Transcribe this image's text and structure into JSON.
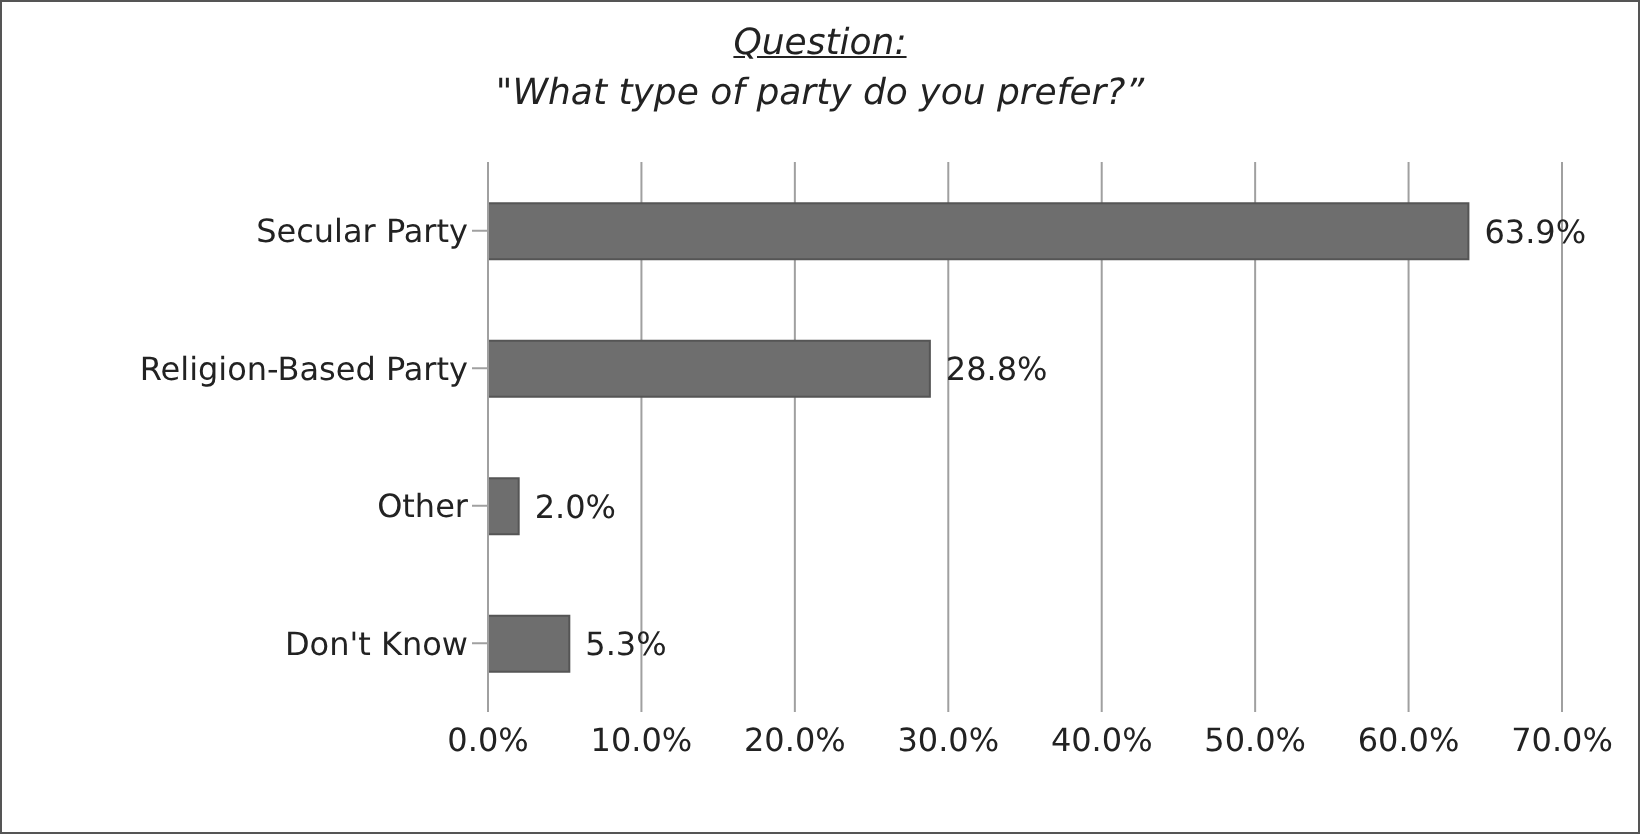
{
  "chart_data": {
    "type": "bar",
    "orientation": "horizontal",
    "title": "Question:",
    "subtitle": "\"What type of party do you prefer?”",
    "categories": [
      "Secular Party",
      "Religion-Based Party",
      "Other",
      "Don't Know"
    ],
    "values": [
      63.9,
      28.8,
      2.0,
      5.3
    ],
    "color": "#6e6e6e",
    "value_labels": [
      "63.9%",
      "28.8%",
      "2.0%",
      "5.3%"
    ],
    "xlim": [
      0,
      70
    ],
    "xticks": [
      {
        "value": 0,
        "label": "0.0%"
      },
      {
        "value": 10,
        "label": "10.0%"
      },
      {
        "value": 20,
        "label": "20.0%"
      },
      {
        "value": 30,
        "label": "30.0%"
      },
      {
        "value": 40,
        "label": "40.0%"
      },
      {
        "value": 50,
        "label": "50.0%"
      },
      {
        "value": 60,
        "label": "60.0%"
      },
      {
        "value": 70,
        "label": "70.0%"
      }
    ],
    "grid": "x"
  }
}
